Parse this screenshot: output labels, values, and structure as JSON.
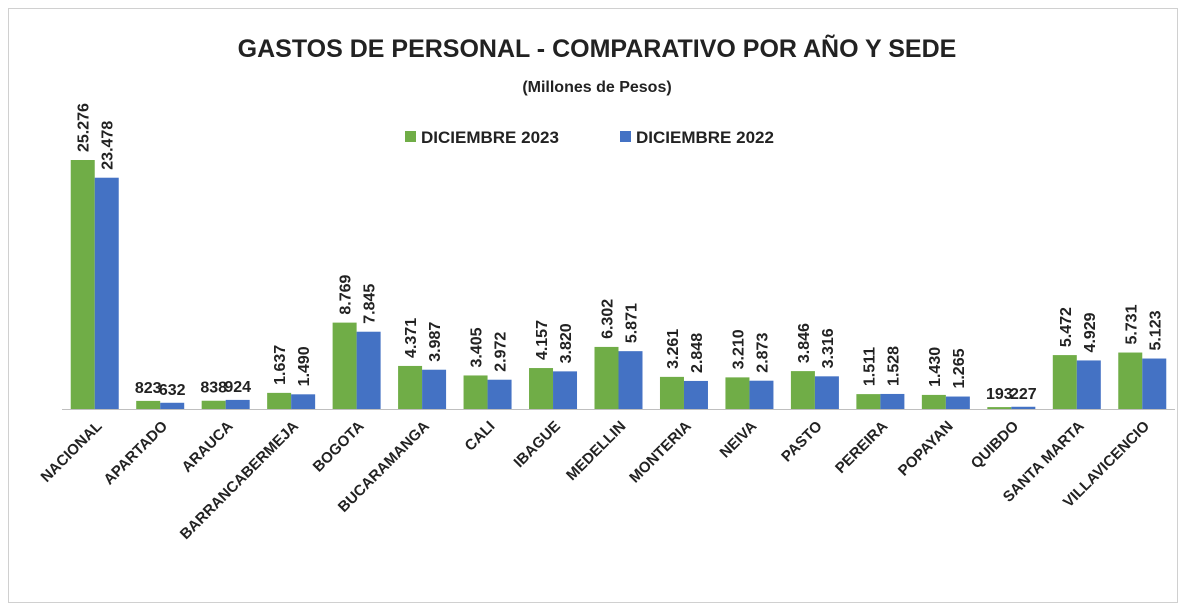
{
  "chart_data": {
    "type": "bar",
    "title": "GASTOS DE PERSONAL - COMPARATIVO POR AÑO Y SEDE",
    "subtitle": "(Millones de Pesos)",
    "categories": [
      "NACIONAL",
      "APARTADO",
      "ARAUCA",
      "BARRANCABERMEJA",
      "BOGOTA",
      "BUCARAMANGA",
      "CALI",
      "IBAGUE",
      "MEDELLIN",
      "MONTERIA",
      "NEIVA",
      "PASTO",
      "PEREIRA",
      "POPAYAN",
      "QUIBDO",
      "SANTA MARTA",
      "VILLAVICENCIO"
    ],
    "series": [
      {
        "name": "DICIEMBRE 2023",
        "color": "#70ad47",
        "values": [
          25276,
          823,
          838,
          1637,
          8769,
          4371,
          3405,
          4157,
          6302,
          3261,
          3210,
          3846,
          1511,
          1430,
          193,
          5472,
          5731
        ],
        "value_labels": [
          "25.276",
          "823",
          "838",
          "1.637",
          "8.769",
          "4.371",
          "3.405",
          "4.157",
          "6.302",
          "3.261",
          "3.210",
          "3.846",
          "1.511",
          "1.430",
          "193",
          "5.472",
          "5.731"
        ]
      },
      {
        "name": "DICIEMBRE 2022",
        "color": "#4472c4",
        "values": [
          23478,
          632,
          924,
          1490,
          7845,
          3987,
          2972,
          3820,
          5871,
          2848,
          2873,
          3316,
          1528,
          1265,
          227,
          4929,
          5123
        ],
        "value_labels": [
          "23.478",
          "632",
          "924",
          "1.490",
          "7.845",
          "3.987",
          "2.972",
          "3.820",
          "5.871",
          "2.848",
          "2.873",
          "3.316",
          "1.528",
          "1.265",
          "227",
          "4.929",
          "5.123"
        ]
      }
    ],
    "legend": "top"
  }
}
